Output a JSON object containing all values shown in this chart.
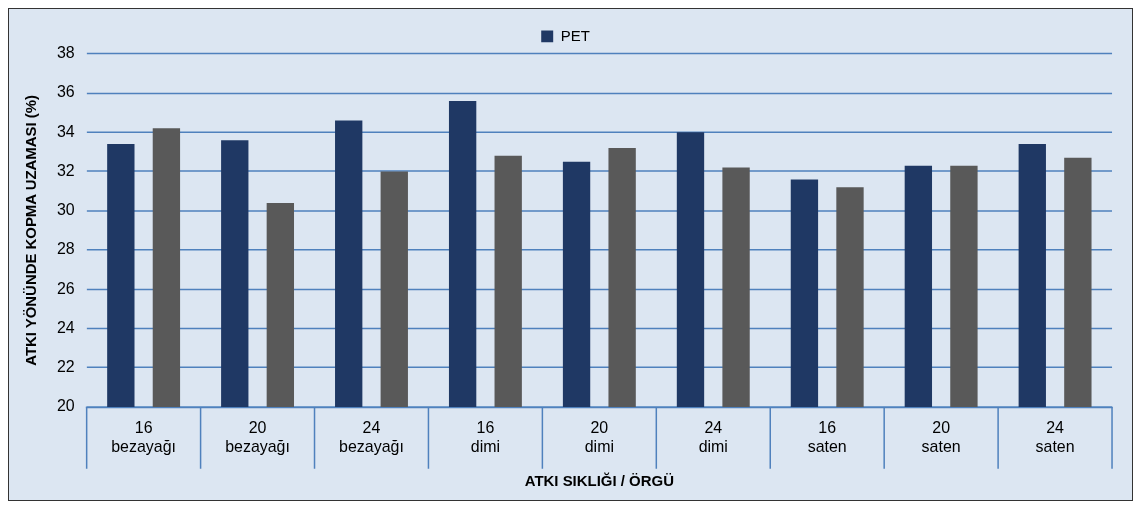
{
  "chart_data": {
    "type": "bar",
    "xlabel": "ATKI SIKLIĞI / ÖRGÜ",
    "ylabel": "ATKI YÖNÜNDE KOPMA UZAMASI (%)",
    "categories": [
      "16\nbezayağı",
      "20\nbezayağı",
      "24\nbezayağı",
      "16\ndimi",
      "20\ndimi",
      "24\ndimi",
      "16\nsaten",
      "20\nsaten",
      "24\nsaten"
    ],
    "series": [
      {
        "name": "PET",
        "color": "#1f3864",
        "values": [
          33.4,
          33.6,
          34.6,
          35.6,
          32.5,
          34.0,
          31.6,
          32.3,
          33.4
        ]
      },
      {
        "color": "#595959",
        "values": [
          34.2,
          30.4,
          32.0,
          32.8,
          33.2,
          32.2,
          31.2,
          32.3,
          32.7
        ]
      }
    ],
    "ylim": [
      20,
      38
    ],
    "yticks": [
      20,
      22,
      24,
      26,
      28,
      30,
      32,
      34,
      36,
      38
    ],
    "grid": "y",
    "legend": "top"
  }
}
